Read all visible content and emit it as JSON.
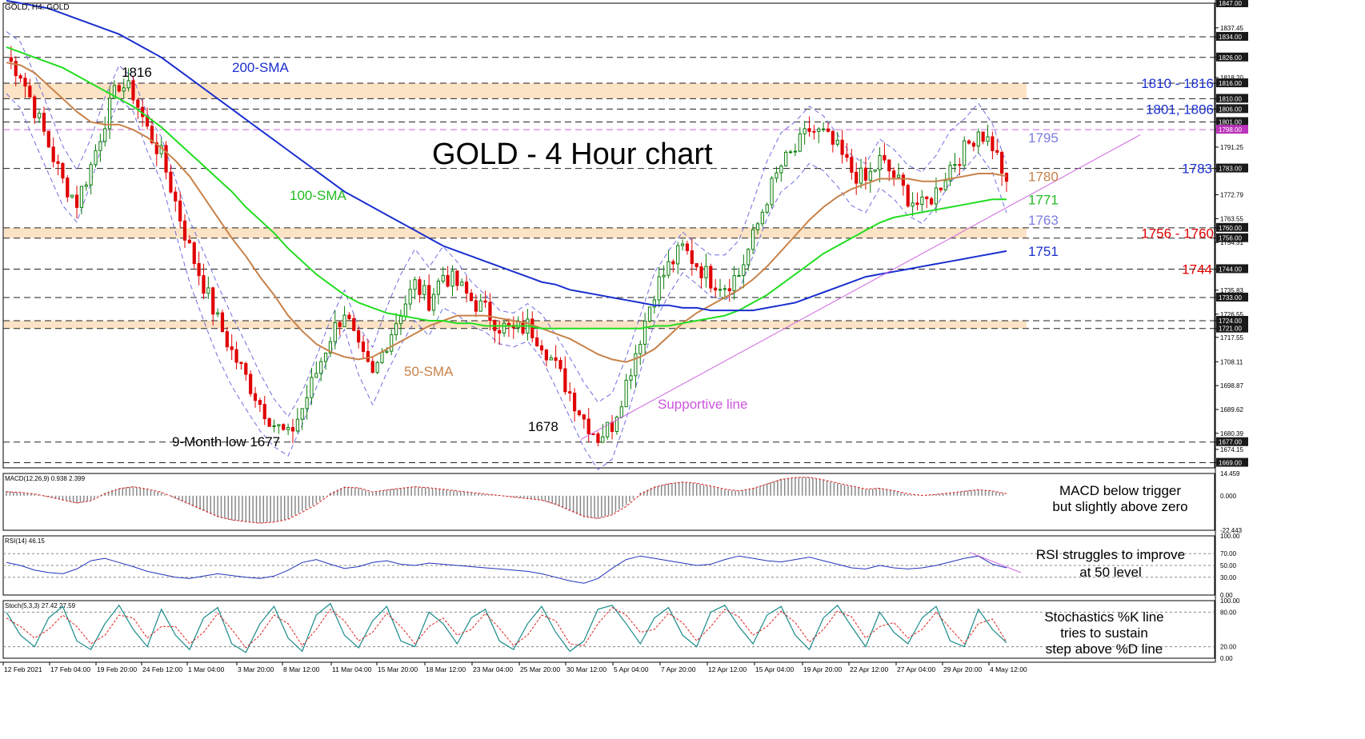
{
  "header": {
    "symbol_label": "GOLD, H4:  GOLD",
    "chart_title": "GOLD - 4 Hour chart"
  },
  "colors": {
    "candle_up": "#0a7d0a",
    "candle_down": "#e00000",
    "sma50": "#c8824a",
    "sma100": "#22dd22",
    "sma200": "#1a2fcf",
    "bollinger": "#6e6ee0",
    "support_line": "#cc66dd",
    "zone_fill": "#fde0bf",
    "price_tag_bg": "#1a1a1a",
    "magenta_tag_bg": "#bb33bb",
    "rsi_line": "#2233bb",
    "stoch_k": "#1a8a8a",
    "stoch_d": "#dd2222",
    "macd_signal": "#dd2222",
    "macd_hist": "#888888"
  },
  "chart_data": [
    {
      "type": "candlestick",
      "title": "GOLD - 4 Hour chart",
      "ylim": [
        1667,
        1847
      ],
      "y_ticks": [
        "1847.00",
        "1837.45",
        "1834.00",
        "1826.00",
        "1818.20",
        "1816.00",
        "1810.00",
        "1806.00",
        "1801.00",
        "1798.00",
        "1791.25",
        "1783.00",
        "1772.79",
        "1763.55",
        "1760.00",
        "1756.00",
        "1754.31",
        "1744.00",
        "1735.83",
        "1733.00",
        "1726.55",
        "1724.00",
        "1721.00",
        "1717.55",
        "1708.11",
        "1698.87",
        "1689.62",
        "1680.39",
        "1677.00",
        "1674.15",
        "1669.00"
      ],
      "x_labels": [
        "12 Feb 2021",
        "17 Feb 04:00",
        "19 Feb 20:00",
        "24 Feb 12:00",
        "1 Mar 04:00",
        "3 Mar 20:00",
        "8 Mar 12:00",
        "11 Mar 04:00",
        "15 Mar 20:00",
        "18 Mar 12:00",
        "23 Mar 04:00",
        "25 Mar 20:00",
        "30 Mar 12:00",
        "5 Apr 04:00",
        "7 Apr 20:00",
        "12 Apr 12:00",
        "15 Apr 04:00",
        "19 Apr 20:00",
        "22 Apr 12:00",
        "27 Apr 04:00",
        "29 Apr 20:00",
        "4 May 12:00"
      ],
      "close_path": [
        1826,
        1820,
        1806,
        1792,
        1778,
        1770,
        1784,
        1802,
        1816,
        1812,
        1798,
        1788,
        1770,
        1752,
        1738,
        1724,
        1712,
        1702,
        1692,
        1684,
        1679,
        1690,
        1704,
        1718,
        1728,
        1712,
        1702,
        1716,
        1728,
        1738,
        1732,
        1742,
        1738,
        1732,
        1728,
        1722,
        1720,
        1722,
        1716,
        1706,
        1696,
        1686,
        1679,
        1684,
        1700,
        1718,
        1736,
        1745,
        1752,
        1746,
        1740,
        1738,
        1742,
        1756,
        1772,
        1784,
        1790,
        1798,
        1796,
        1790,
        1782,
        1778,
        1786,
        1780,
        1772,
        1768,
        1774,
        1784,
        1790,
        1798,
        1792,
        1778
      ],
      "candles_per_step": 3,
      "series": [
        {
          "name": "50-SMA",
          "values": [
            1824,
            1823,
            1820,
            1815,
            1810,
            1805,
            1801,
            1800,
            1800,
            1798,
            1795,
            1791,
            1786,
            1780,
            1772,
            1764,
            1756,
            1749,
            1741,
            1734,
            1726,
            1720,
            1715,
            1712,
            1710,
            1709,
            1710,
            1713,
            1716,
            1719,
            1722,
            1724,
            1726,
            1726,
            1726,
            1725,
            1724,
            1723,
            1721,
            1719,
            1717,
            1714,
            1711,
            1709,
            1708,
            1710,
            1713,
            1718,
            1723,
            1727,
            1730,
            1733,
            1736,
            1740,
            1745,
            1751,
            1757,
            1763,
            1768,
            1772,
            1775,
            1777,
            1779,
            1779,
            1779,
            1778,
            1778,
            1779,
            1780,
            1781,
            1781,
            1780
          ]
        },
        {
          "name": "100-SMA",
          "values": [
            1830,
            1828,
            1826,
            1824,
            1822,
            1819,
            1816,
            1813,
            1810,
            1807,
            1803,
            1799,
            1794,
            1789,
            1784,
            1779,
            1774,
            1768,
            1763,
            1758,
            1752,
            1747,
            1742,
            1738,
            1734,
            1731,
            1729,
            1727,
            1726,
            1725,
            1724,
            1724,
            1723,
            1723,
            1722,
            1722,
            1722,
            1722,
            1721,
            1721,
            1721,
            1721,
            1721,
            1721,
            1721,
            1721,
            1722,
            1722,
            1723,
            1724,
            1725,
            1726,
            1728,
            1731,
            1734,
            1738,
            1742,
            1746,
            1750,
            1753,
            1756,
            1759,
            1762,
            1764,
            1765,
            1766,
            1767,
            1768,
            1769,
            1770,
            1771,
            1771
          ]
        },
        {
          "name": "200-SMA",
          "values": [
            1848,
            1847,
            1846,
            1845,
            1843,
            1841,
            1839,
            1837,
            1835,
            1832,
            1829,
            1826,
            1822,
            1818,
            1814,
            1810,
            1806,
            1802,
            1798,
            1794,
            1790,
            1786,
            1782,
            1778,
            1774,
            1771,
            1768,
            1765,
            1762,
            1759,
            1756,
            1753,
            1751,
            1749,
            1747,
            1745,
            1743,
            1741,
            1739,
            1738,
            1736,
            1735,
            1734,
            1733,
            1732,
            1731,
            1730,
            1730,
            1729,
            1729,
            1728,
            1728,
            1728,
            1728,
            1729,
            1730,
            1731,
            1733,
            1735,
            1737,
            1739,
            1741,
            1742,
            1743,
            1744,
            1745,
            1746,
            1747,
            1748,
            1749,
            1750,
            1751
          ]
        }
      ],
      "zones": [
        {
          "from": 1810,
          "to": 1816
        },
        {
          "from": 1756,
          "to": 1760
        },
        {
          "from": 1721,
          "to": 1724
        }
      ],
      "dashed_levels": [
        1834,
        1826,
        1816,
        1810,
        1806,
        1801,
        1798,
        1783,
        1760,
        1756,
        1744,
        1733,
        1724,
        1721,
        1677,
        1669
      ],
      "price_tags": [
        "1847.00",
        "1834.00",
        "1826.00",
        "1816.00",
        "1810.00",
        "1806.00",
        "1801.00",
        "1798.00",
        "1783.00",
        "1760.00",
        "1756.00",
        "1744.00",
        "1733.00",
        "1724.00",
        "1721.00",
        "1677.00",
        "1669.00"
      ],
      "level_labels": [
        {
          "text": "1810 - 1816",
          "value": 1816,
          "color": "#1a2fcf"
        },
        {
          "text": "1801, 1806",
          "value": 1806,
          "color": "#1a2fcf"
        },
        {
          "text": "1795",
          "value": 1795,
          "color": "#7c7ce0"
        },
        {
          "text": "1783",
          "value": 1783,
          "color": "#1a2fcf"
        },
        {
          "text": "1780",
          "value": 1780,
          "color": "#c8824a"
        },
        {
          "text": "1771",
          "value": 1771,
          "color": "#22bb22"
        },
        {
          "text": "1763",
          "value": 1763,
          "color": "#7c7ce0"
        },
        {
          "text": "1756 - 1760",
          "value": 1758,
          "color": "#e00000"
        },
        {
          "text": "1751",
          "value": 1751,
          "color": "#1a2fcf"
        },
        {
          "text": "1744",
          "value": 1744,
          "color": "#e00000"
        }
      ],
      "annotations": [
        {
          "text": "200-SMA",
          "color": "#1a2fcf"
        },
        {
          "text": "100-SMA",
          "color": "#22bb22"
        },
        {
          "text": "50-SMA",
          "color": "#c8824a"
        },
        {
          "text": "Supportive line",
          "color": "#cc55dd"
        },
        {
          "text": "1816",
          "color": "#000000"
        },
        {
          "text": "9-Month low 1677",
          "color": "#000000"
        },
        {
          "text": "1678",
          "color": "#000000"
        }
      ]
    },
    {
      "type": "bar",
      "title": "MACD(12,26,9) 0.938 2.399",
      "y_ticks": [
        "14.459",
        "0.000",
        "-22.443"
      ],
      "ylim": [
        -22.443,
        14.459
      ],
      "note": "MACD below trigger but slightly above zero",
      "values": [
        3,
        2,
        1,
        -1,
        -3,
        -5,
        -3,
        2,
        5,
        6,
        4,
        2,
        -2,
        -6,
        -10,
        -14,
        -16,
        -17,
        -18,
        -17,
        -15,
        -10,
        -5,
        2,
        6,
        5,
        2,
        4,
        5,
        6,
        5,
        4,
        3,
        2,
        1,
        0,
        -1,
        -2,
        -3,
        -6,
        -10,
        -14,
        -15,
        -12,
        -6,
        2,
        6,
        8,
        9,
        8,
        6,
        4,
        3,
        5,
        8,
        11,
        12,
        12,
        10,
        8,
        6,
        4,
        5,
        3,
        1,
        0,
        1,
        2,
        3,
        4,
        3,
        1
      ]
    },
    {
      "type": "line",
      "title": "RSI(14) 46.15",
      "y_ticks": [
        "100.00",
        "70.00",
        "50.00",
        "30.00",
        "0.00"
      ],
      "ylim": [
        0,
        100
      ],
      "note": "RSI struggles to improve at 50 level",
      "values": [
        55,
        50,
        42,
        38,
        36,
        44,
        58,
        62,
        55,
        48,
        40,
        35,
        30,
        28,
        32,
        36,
        33,
        30,
        28,
        32,
        42,
        55,
        60,
        52,
        45,
        48,
        55,
        58,
        52,
        50,
        54,
        52,
        50,
        48,
        46,
        44,
        42,
        40,
        36,
        30,
        24,
        20,
        28,
        45,
        60,
        66,
        62,
        58,
        54,
        50,
        52,
        60,
        66,
        62,
        58,
        56,
        60,
        64,
        58,
        52,
        46,
        44,
        50,
        46,
        44,
        46,
        50,
        56,
        62,
        66,
        52,
        46
      ]
    },
    {
      "type": "line",
      "title": "Stoch(5,3,3) 27.42 27.59",
      "y_ticks": [
        "100.00",
        "80.00",
        "20.00",
        "0.00"
      ],
      "ylim": [
        0,
        100
      ],
      "note": "Stochastics %K line tries to sustain step above %D line",
      "series": [
        {
          "name": "%K",
          "values": [
            80,
            40,
            20,
            70,
            90,
            30,
            15,
            60,
            92,
            50,
            20,
            85,
            40,
            15,
            70,
            88,
            25,
            10,
            60,
            90,
            35,
            12,
            75,
            95,
            40,
            18,
            65,
            90,
            30,
            20,
            80,
            60,
            25,
            70,
            85,
            30,
            15,
            60,
            90,
            45,
            12,
            30,
            85,
            92,
            60,
            25,
            70,
            88,
            40,
            20,
            80,
            92,
            55,
            25,
            75,
            90,
            40,
            15,
            70,
            92,
            55,
            20,
            80,
            45,
            25,
            70,
            90,
            30,
            20,
            85,
            50,
            27
          ]
        },
        {
          "name": "%D",
          "values": [
            70,
            55,
            35,
            50,
            75,
            55,
            25,
            40,
            75,
            70,
            35,
            55,
            55,
            25,
            45,
            78,
            50,
            18,
            40,
            75,
            60,
            22,
            50,
            85,
            65,
            30,
            45,
            78,
            55,
            25,
            55,
            70,
            40,
            50,
            78,
            52,
            22,
            40,
            75,
            65,
            25,
            22,
            60,
            88,
            75,
            45,
            50,
            78,
            62,
            30,
            55,
            85,
            72,
            40,
            55,
            82,
            62,
            28,
            50,
            82,
            72,
            35,
            55,
            62,
            35,
            50,
            80,
            52,
            25,
            60,
            68,
            28
          ]
        }
      ]
    }
  ]
}
